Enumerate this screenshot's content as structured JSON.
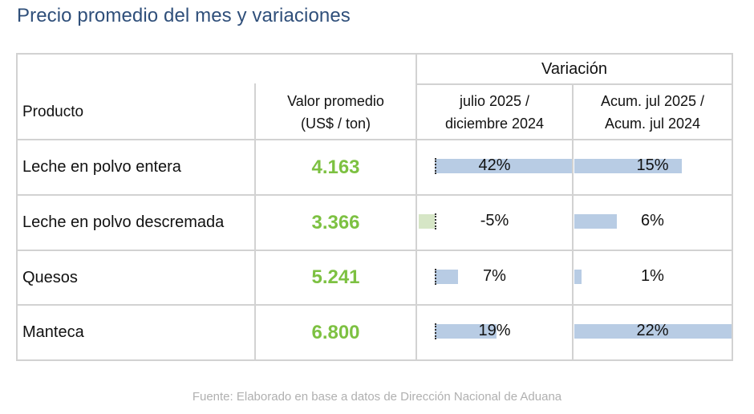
{
  "title": "Precio promedio del mes y variaciones",
  "headers": {
    "variacion": "Variación",
    "producto": "Producto",
    "valor_line1": "Valor promedio",
    "valor_line2": "(US$ / ton)",
    "col1_line1": "julio 2025 /",
    "col1_line2": "diciembre 2024",
    "col2_line1": "Acum. jul 2025 /",
    "col2_line2": "Acum. jul 2024"
  },
  "rows": [
    {
      "product": "Leche en polvo entera",
      "value": "4.163",
      "var_mensual": "42%",
      "var_mensual_num": 42,
      "var_acum": "15%",
      "var_acum_num": 15
    },
    {
      "product": "Leche en polvo descremada",
      "value": "3.366",
      "var_mensual": "-5%",
      "var_mensual_num": -5,
      "var_acum": "6%",
      "var_acum_num": 6
    },
    {
      "product": "Quesos",
      "value": "5.241",
      "var_mensual": "7%",
      "var_mensual_num": 7,
      "var_acum": "1%",
      "var_acum_num": 1
    },
    {
      "product": "Manteca",
      "value": "6.800",
      "var_mensual": "19%",
      "var_mensual_num": 19,
      "var_acum": "22%",
      "var_acum_num": 22
    }
  ],
  "colors": {
    "positive_bar": "#b8cce4",
    "negative_bar": "#d6e6c6",
    "value_text": "#7dc142",
    "title": "#2f4f7a"
  },
  "footer": "Fuente: Elaborado en base a datos de Dirección Nacional de Aduana"
}
